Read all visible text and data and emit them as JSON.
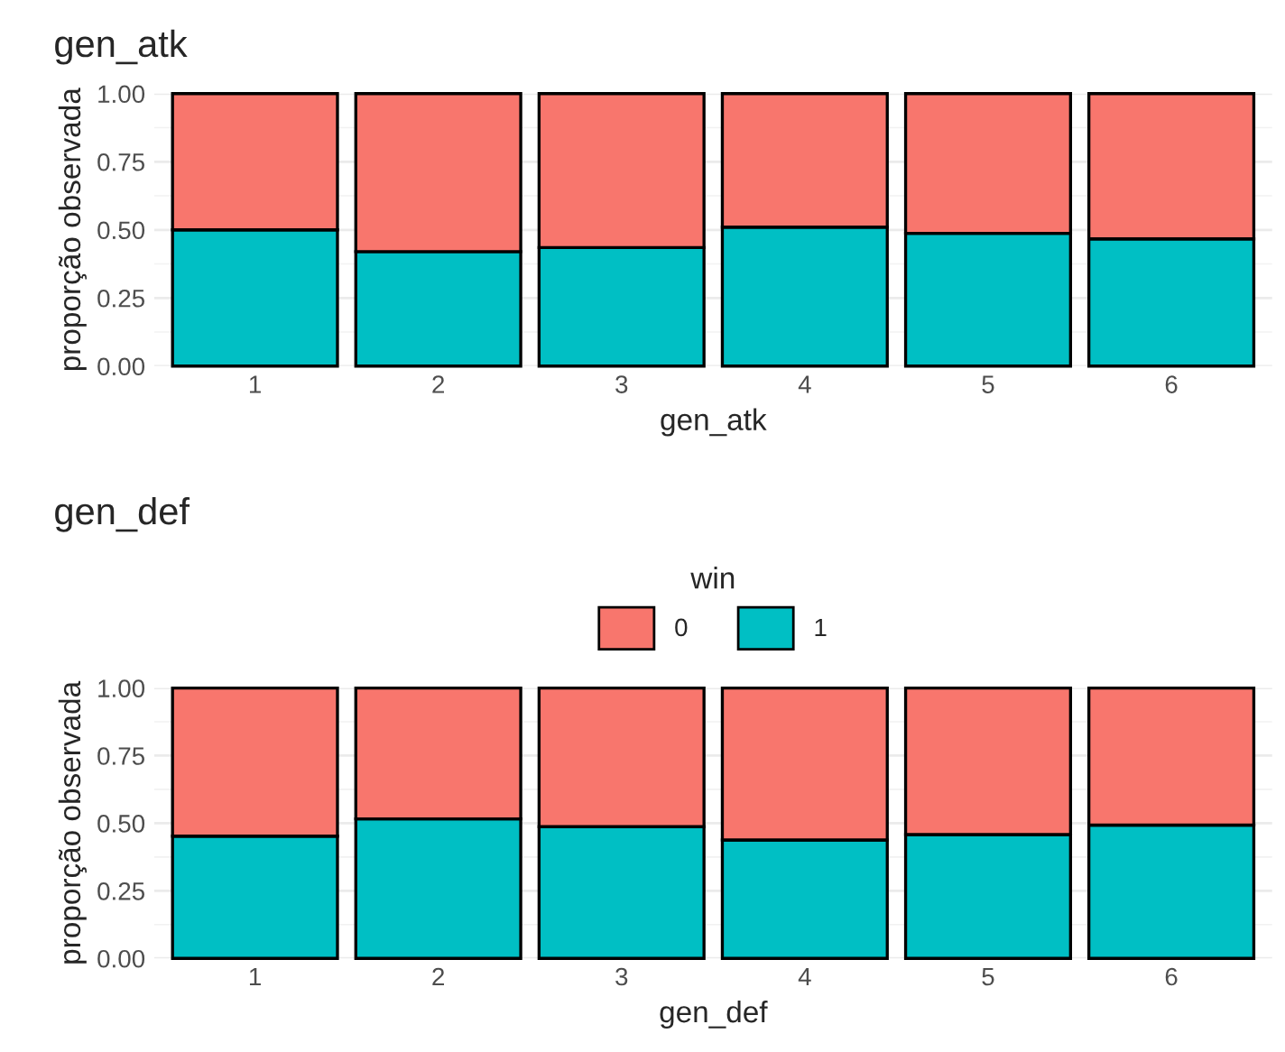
{
  "chart_data": [
    {
      "type": "bar",
      "title": "gen_atk",
      "xlabel": "gen_atk",
      "ylabel": "proporção observada",
      "categories": [
        "1",
        "2",
        "3",
        "4",
        "5",
        "6"
      ],
      "stacked": true,
      "series": [
        {
          "color": "#00bfc4",
          "values": [
            0.5,
            0.42,
            0.435,
            0.51,
            0.487,
            0.467
          ]
        },
        {
          "color": "#f8766d",
          "values": [
            0.5,
            0.58,
            0.565,
            0.49,
            0.513,
            0.533
          ]
        }
      ],
      "ylim": [
        0,
        1
      ],
      "yticks": [
        {
          "value": 0,
          "label": "0.00"
        },
        {
          "value": 0.25,
          "label": "0.25"
        },
        {
          "value": 0.5,
          "label": "0.50"
        },
        {
          "value": 0.75,
          "label": "0.75"
        },
        {
          "value": 1,
          "label": "1.00"
        }
      ],
      "grid": true,
      "legend": false
    },
    {
      "type": "bar",
      "title": "gen_def",
      "xlabel": "gen_def",
      "ylabel": "proporção observada",
      "legend_title": "win",
      "categories": [
        "1",
        "2",
        "3",
        "4",
        "5",
        "6"
      ],
      "stacked": true,
      "series": [
        {
          "name": "1",
          "color": "#00bfc4",
          "values": [
            0.452,
            0.516,
            0.487,
            0.438,
            0.458,
            0.493
          ]
        },
        {
          "name": "0",
          "color": "#f8766d",
          "values": [
            0.548,
            0.484,
            0.513,
            0.562,
            0.542,
            0.507
          ]
        }
      ],
      "ylim": [
        0,
        1
      ],
      "yticks": [
        {
          "value": 0,
          "label": "0.00"
        },
        {
          "value": 0.25,
          "label": "0.25"
        },
        {
          "value": 0.5,
          "label": "0.50"
        },
        {
          "value": 0.75,
          "label": "0.75"
        },
        {
          "value": 1,
          "label": "1.00"
        }
      ],
      "grid": true,
      "legend": "top"
    }
  ]
}
